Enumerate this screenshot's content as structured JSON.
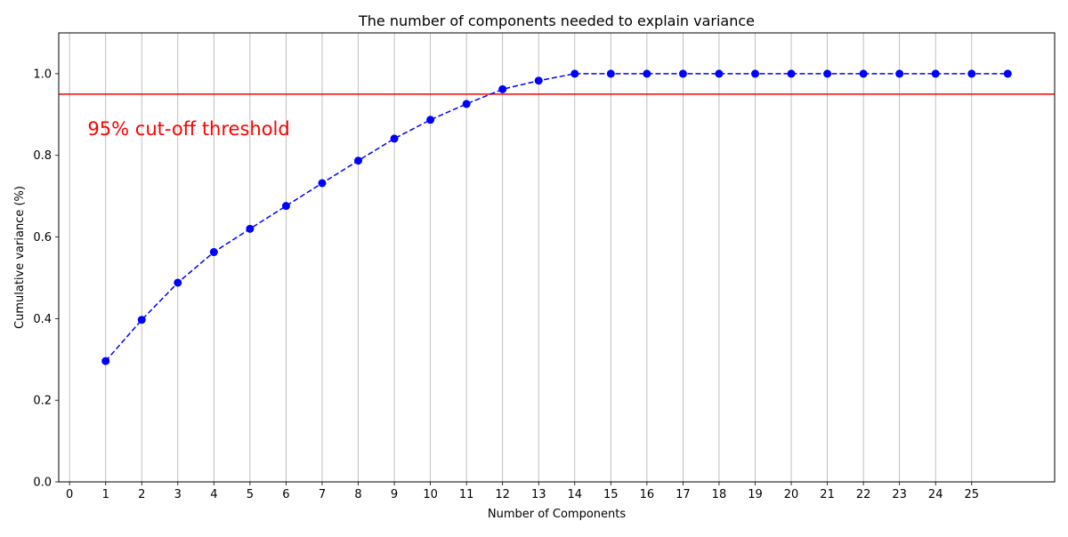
{
  "chart_data": {
    "type": "line",
    "title": "The number of components needed to explain variance",
    "xlabel": "Number of Components",
    "ylabel": "Cumulative variance (%)",
    "xlim": [
      -0.3,
      27.3
    ],
    "ylim": [
      0.0,
      1.1
    ],
    "x_ticks": [
      0,
      1,
      2,
      3,
      4,
      5,
      6,
      7,
      8,
      9,
      10,
      11,
      12,
      13,
      14,
      15,
      16,
      17,
      18,
      19,
      20,
      21,
      22,
      23,
      24,
      25
    ],
    "y_ticks": [
      0.0,
      0.2,
      0.4,
      0.6,
      0.8,
      1.0
    ],
    "grid": "vertical",
    "series": [
      {
        "color": "#0000ff",
        "line_style": "dashed",
        "marker": "circle",
        "x": [
          1,
          2,
          3,
          4,
          5,
          6,
          7,
          8,
          9,
          10,
          11,
          12,
          13,
          14,
          15,
          16,
          17,
          18,
          19,
          20,
          21,
          22,
          23,
          24,
          25,
          26
        ],
        "y": [
          0.296,
          0.397,
          0.488,
          0.563,
          0.62,
          0.676,
          0.732,
          0.787,
          0.841,
          0.887,
          0.926,
          0.962,
          0.983,
          1.0,
          1.0,
          1.0,
          1.0,
          1.0,
          1.0,
          1.0,
          1.0,
          1.0,
          1.0,
          1.0,
          1.0,
          1.0
        ]
      }
    ],
    "threshold": {
      "y": 0.95,
      "color": "#ff0000",
      "label": "95% cut-off threshold",
      "label_x": 0.5,
      "label_y": 0.85
    }
  }
}
